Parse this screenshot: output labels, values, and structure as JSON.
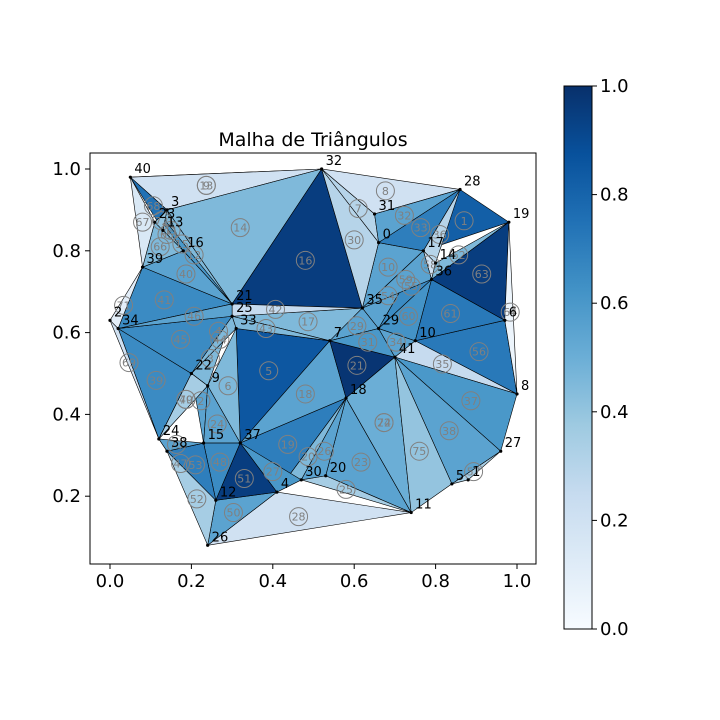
{
  "chart_data": {
    "type": "mesh",
    "title": "Malha de Triângulos",
    "x_ticks": [
      "0.0",
      "0.2",
      "0.4",
      "0.6",
      "0.8",
      "1.0"
    ],
    "y_ticks": [
      "0.2",
      "0.4",
      "0.6",
      "0.8",
      "1.0"
    ],
    "xlim": [
      -0.04,
      1.04
    ],
    "ylim": [
      0.03,
      1.04
    ],
    "colormap": "Blues",
    "colorbar": {
      "range": [
        0,
        1
      ],
      "ticks": [
        "0.0",
        "0.2",
        "0.4",
        "0.6",
        "0.8",
        "1.0"
      ]
    },
    "colormap_stops": [
      "#f7fbff",
      "#deebf7",
      "#c6dbef",
      "#9ecae1",
      "#6baed6",
      "#4292c6",
      "#2171b5",
      "#08519c",
      "#08306b"
    ],
    "vertices": [
      {
        "id": "0",
        "x": 0.66,
        "y": 0.82
      },
      {
        "id": "1",
        "x": 0.88,
        "y": 0.24
      },
      {
        "id": "2",
        "x": 0.0,
        "y": 0.63
      },
      {
        "id": "3",
        "x": 0.14,
        "y": 0.9
      },
      {
        "id": "4",
        "x": 0.41,
        "y": 0.21
      },
      {
        "id": "5",
        "x": 0.84,
        "y": 0.23
      },
      {
        "id": "6",
        "x": 0.97,
        "y": 0.63
      },
      {
        "id": "7",
        "x": 0.54,
        "y": 0.58
      },
      {
        "id": "8",
        "x": 1.0,
        "y": 0.45
      },
      {
        "id": "9",
        "x": 0.24,
        "y": 0.47
      },
      {
        "id": "10",
        "x": 0.75,
        "y": 0.58
      },
      {
        "id": "11",
        "x": 0.74,
        "y": 0.16
      },
      {
        "id": "12",
        "x": 0.26,
        "y": 0.19
      },
      {
        "id": "13",
        "x": 0.13,
        "y": 0.85
      },
      {
        "id": "14",
        "x": 0.8,
        "y": 0.77
      },
      {
        "id": "15",
        "x": 0.23,
        "y": 0.33
      },
      {
        "id": "16",
        "x": 0.18,
        "y": 0.8
      },
      {
        "id": "17",
        "x": 0.77,
        "y": 0.8
      },
      {
        "id": "18",
        "x": 0.58,
        "y": 0.44
      },
      {
        "id": "19",
        "x": 0.98,
        "y": 0.87
      },
      {
        "id": "20",
        "x": 0.53,
        "y": 0.25
      },
      {
        "id": "21",
        "x": 0.3,
        "y": 0.67
      },
      {
        "id": "22",
        "x": 0.2,
        "y": 0.5
      },
      {
        "id": "23",
        "x": 0.11,
        "y": 0.87
      },
      {
        "id": "24",
        "x": 0.12,
        "y": 0.34
      },
      {
        "id": "25",
        "x": 0.3,
        "y": 0.64
      },
      {
        "id": "26",
        "x": 0.24,
        "y": 0.08
      },
      {
        "id": "27",
        "x": 0.96,
        "y": 0.31
      },
      {
        "id": "28",
        "x": 0.86,
        "y": 0.95
      },
      {
        "id": "29",
        "x": 0.66,
        "y": 0.61
      },
      {
        "id": "30",
        "x": 0.47,
        "y": 0.24
      },
      {
        "id": "31",
        "x": 0.65,
        "y": 0.89
      },
      {
        "id": "32",
        "x": 0.52,
        "y": 1.0
      },
      {
        "id": "33",
        "x": 0.31,
        "y": 0.61
      },
      {
        "id": "34",
        "x": 0.02,
        "y": 0.61
      },
      {
        "id": "35",
        "x": 0.62,
        "y": 0.66
      },
      {
        "id": "36",
        "x": 0.79,
        "y": 0.73
      },
      {
        "id": "37",
        "x": 0.32,
        "y": 0.33
      },
      {
        "id": "38",
        "x": 0.14,
        "y": 0.31
      },
      {
        "id": "39",
        "x": 0.08,
        "y": 0.76
      },
      {
        "id": "40",
        "x": 0.05,
        "y": 0.98
      },
      {
        "id": "41",
        "x": 0.7,
        "y": 0.54
      }
    ],
    "triangles": [
      {
        "id": "1",
        "v": [
          "28",
          "19",
          "17"
        ],
        "value": 0.82
      },
      {
        "id": "2",
        "v": [
          "9",
          "22",
          "15"
        ],
        "value": 0.55
      },
      {
        "id": "3",
        "v": [
          "22",
          "9",
          "25"
        ],
        "value": 0.45
      },
      {
        "id": "4",
        "v": [
          "25",
          "22",
          "21"
        ],
        "value": 0.3
      },
      {
        "id": "5",
        "v": [
          "33",
          "7",
          "37"
        ],
        "value": 0.85
      },
      {
        "id": "6",
        "v": [
          "9",
          "37",
          "33"
        ],
        "value": 0.45
      },
      {
        "id": "7",
        "v": [
          "31",
          "0",
          "32"
        ],
        "value": 0.3
      },
      {
        "id": "8",
        "v": [
          "31",
          "28",
          "32"
        ],
        "value": 0.2
      },
      {
        "id": "9",
        "v": [
          "3",
          "40",
          "32"
        ],
        "value": 0.15
      },
      {
        "id": "10",
        "v": [
          "0",
          "17",
          "35"
        ],
        "value": 0.55
      },
      {
        "id": "11",
        "v": [
          "13",
          "3",
          "16"
        ],
        "value": 0.45
      },
      {
        "id": "12",
        "v": [
          "21",
          "16",
          "3"
        ],
        "value": 0.45
      },
      {
        "id": "13",
        "v": [
          "40",
          "32",
          "3"
        ],
        "value": 0.2
      },
      {
        "id": "14",
        "v": [
          "3",
          "32",
          "21"
        ],
        "value": 0.45
      },
      {
        "id": "15",
        "v": [
          "16",
          "21",
          "40"
        ],
        "value": 0.6
      },
      {
        "id": "16",
        "v": [
          "21",
          "32",
          "35"
        ],
        "value": 0.95
      },
      {
        "id": "17",
        "v": [
          "25",
          "35",
          "7"
        ],
        "value": 0.45
      },
      {
        "id": "18",
        "v": [
          "7",
          "18",
          "37"
        ],
        "value": 0.55
      },
      {
        "id": "19",
        "v": [
          "37",
          "18",
          "4"
        ],
        "value": 0.7
      },
      {
        "id": "20",
        "v": [
          "4",
          "18",
          "30"
        ],
        "value": 0.45
      },
      {
        "id": "21",
        "v": [
          "7",
          "41",
          "18"
        ],
        "value": 0.98
      },
      {
        "id": "22",
        "v": [
          "41",
          "11",
          "18"
        ],
        "value": 0.6
      },
      {
        "id": "23",
        "v": [
          "18",
          "11",
          "20"
        ],
        "value": 0.55
      },
      {
        "id": "24",
        "v": [
          "9",
          "15",
          "37"
        ],
        "value": 0.55
      },
      {
        "id": "25",
        "v": [
          "20",
          "11",
          "30"
        ],
        "value": 0.35
      },
      {
        "id": "26",
        "v": [
          "18",
          "20",
          "30"
        ],
        "value": 0.55
      },
      {
        "id": "27",
        "v": [
          "30",
          "4",
          "37"
        ],
        "value": 0.6
      },
      {
        "id": "28",
        "v": [
          "26",
          "11",
          "4"
        ],
        "value": 0.2
      },
      {
        "id": "29",
        "v": [
          "35",
          "29",
          "7"
        ],
        "value": 0.55
      },
      {
        "id": "30",
        "v": [
          "0",
          "32",
          "35"
        ],
        "value": 0.3
      },
      {
        "id": "31",
        "v": [
          "29",
          "41",
          "7"
        ],
        "value": 0.6
      },
      {
        "id": "32",
        "v": [
          "28",
          "0",
          "31"
        ],
        "value": 0.55
      },
      {
        "id": "33",
        "v": [
          "0",
          "28",
          "17"
        ],
        "value": 0.7
      },
      {
        "id": "34",
        "v": [
          "10",
          "41",
          "29"
        ],
        "value": 0.55
      },
      {
        "id": "35",
        "v": [
          "10",
          "41",
          "8"
        ],
        "value": 0.25
      },
      {
        "id": "36",
        "v": [
          "17",
          "28",
          "14"
        ],
        "value": 0.3
      },
      {
        "id": "37",
        "v": [
          "8",
          "41",
          "27"
        ],
        "value": 0.6
      },
      {
        "id": "38",
        "v": [
          "41",
          "27",
          "5"
        ],
        "value": 0.55
      },
      {
        "id": "39",
        "v": [
          "24",
          "34",
          "22"
        ],
        "value": 0.65
      },
      {
        "id": "40",
        "v": [
          "16",
          "39",
          "21"
        ],
        "value": 0.55
      },
      {
        "id": "41",
        "v": [
          "39",
          "21",
          "34"
        ],
        "value": 0.65
      },
      {
        "id": "42",
        "v": [
          "25",
          "21",
          "35"
        ],
        "value": 0.25
      },
      {
        "id": "43",
        "v": [
          "25",
          "33",
          "7"
        ],
        "value": 0.45
      },
      {
        "id": "44",
        "v": [
          "22",
          "25",
          "33"
        ],
        "value": 0.45
      },
      {
        "id": "45",
        "v": [
          "34",
          "22",
          "25"
        ],
        "value": 0.65
      },
      {
        "id": "46",
        "v": [
          "21",
          "34",
          "25"
        ],
        "value": 0.55
      },
      {
        "id": "47",
        "v": [
          "38",
          "12",
          "24"
        ],
        "value": 0.65
      },
      {
        "id": "48",
        "v": [
          "15",
          "37",
          "12"
        ],
        "value": 0.65
      },
      {
        "id": "49",
        "v": [
          "24",
          "9",
          "22"
        ],
        "value": 0.3
      },
      {
        "id": "50",
        "v": [
          "12",
          "26",
          "4"
        ],
        "value": 0.55
      },
      {
        "id": "51",
        "v": [
          "37",
          "4",
          "12"
        ],
        "value": 0.95
      },
      {
        "id": "52",
        "v": [
          "38",
          "12",
          "26"
        ],
        "value": 0.35
      },
      {
        "id": "53",
        "v": [
          "15",
          "38",
          "12"
        ],
        "value": 0.7
      },
      {
        "id": "54",
        "v": [
          "17",
          "35",
          "29"
        ],
        "value": 0.55
      },
      {
        "id": "55",
        "v": [
          "17",
          "29",
          "36"
        ],
        "value": 0.65
      },
      {
        "id": "56",
        "v": [
          "6",
          "8",
          "10"
        ],
        "value": 0.72
      },
      {
        "id": "57",
        "v": [
          "5",
          "27",
          "1"
        ],
        "value": 0.35
      },
      {
        "id": "58",
        "v": [
          "36",
          "14",
          "17"
        ],
        "value": 0.2
      },
      {
        "id": "59",
        "v": [
          "17",
          "36",
          "35"
        ],
        "value": 0.55
      },
      {
        "id": "60",
        "v": [
          "29",
          "36",
          "10"
        ],
        "value": 0.62
      },
      {
        "id": "61",
        "v": [
          "36",
          "6",
          "10"
        ],
        "value": 0.72
      },
      {
        "id": "62",
        "v": [
          "14",
          "19",
          "36"
        ],
        "value": 0.45
      },
      {
        "id": "63",
        "v": [
          "36",
          "19",
          "6"
        ],
        "value": 0.95
      },
      {
        "id": "64",
        "v": [
          "19",
          "6",
          "8"
        ],
        "value": 0.05
      },
      {
        "id": "65",
        "v": [
          "23",
          "16",
          "13"
        ],
        "value": 0.7
      },
      {
        "id": "66",
        "v": [
          "39",
          "23",
          "16"
        ],
        "value": 0.45
      },
      {
        "id": "67",
        "v": [
          "40",
          "23",
          "39"
        ],
        "value": 0.15
      },
      {
        "id": "68",
        "v": [
          "40",
          "3",
          "13"
        ],
        "value": 0.75
      },
      {
        "id": "69",
        "v": [
          "2",
          "34",
          "24"
        ],
        "value": 0.2
      },
      {
        "id": "70",
        "v": [
          "24",
          "22",
          "9"
        ],
        "value": 0.35
      },
      {
        "id": "71",
        "v": [
          "2",
          "39",
          "34"
        ],
        "value": 0.1
      },
      {
        "id": "72",
        "v": [
          "23",
          "13",
          "3"
        ],
        "value": 0.4
      },
      {
        "id": "73",
        "v": [
          "24",
          "15",
          "38"
        ],
        "value": 0.55
      },
      {
        "id": "74",
        "v": [
          "18",
          "11",
          "41"
        ],
        "value": 0.5
      },
      {
        "id": "75",
        "v": [
          "11",
          "5",
          "41"
        ],
        "value": 0.4
      }
    ]
  }
}
